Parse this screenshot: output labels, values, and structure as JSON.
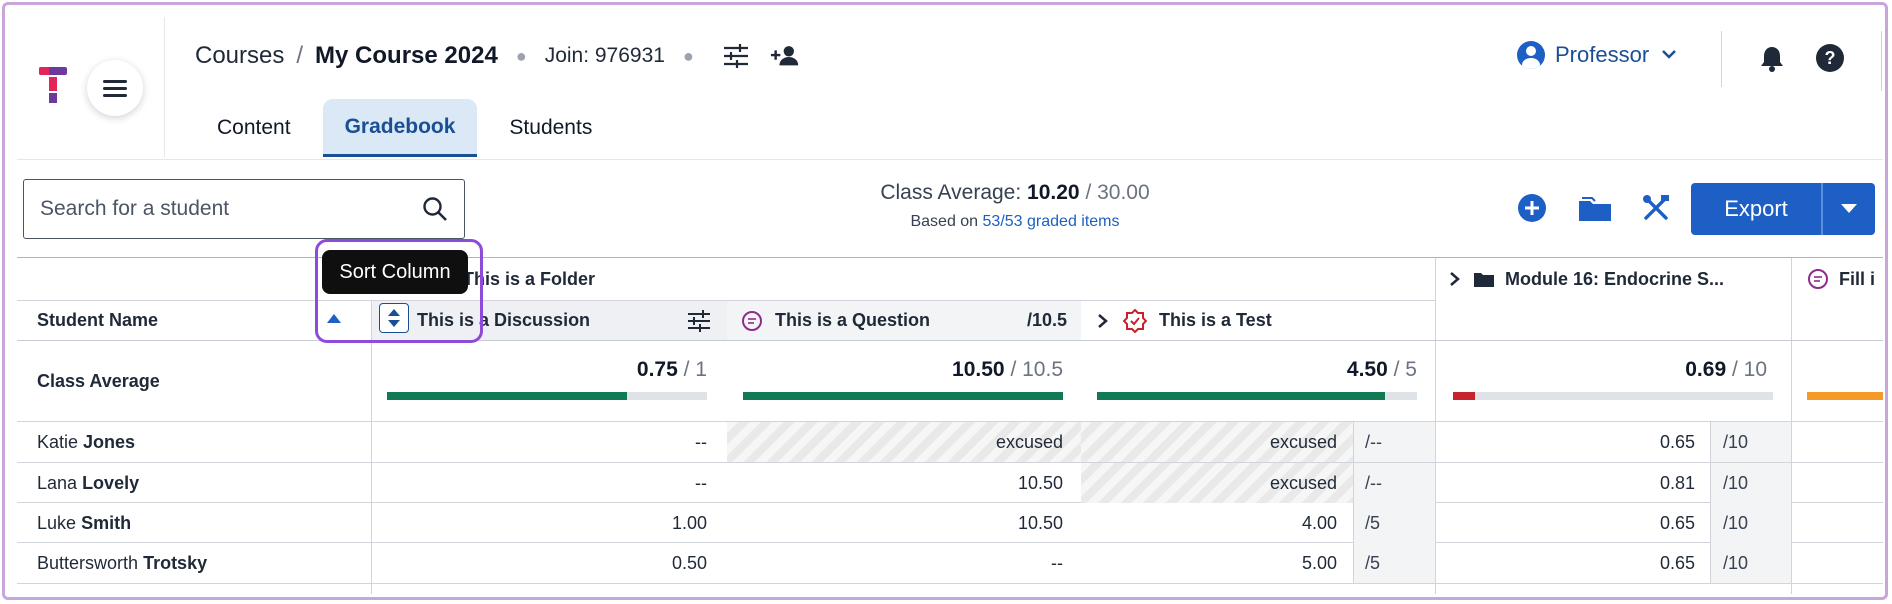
{
  "header": {
    "breadcrumb_root": "Courses",
    "breadcrumb_sep": "/",
    "breadcrumb_current": "My Course 2024",
    "join_code": "Join: 976931",
    "tabs": [
      {
        "label": "Content"
      },
      {
        "label": "Gradebook"
      },
      {
        "label": "Students"
      }
    ],
    "role": "Professor"
  },
  "toolbar": {
    "search_placeholder": "Search for a student",
    "class_average_label": "Class Average:",
    "class_average_value": "10.20",
    "class_average_total": "/ 30.00",
    "based_on_prefix": "Based on",
    "based_on_link": "53/53 graded items",
    "export_label": "Export"
  },
  "tooltip": "Sort Column",
  "grid": {
    "folder_label": "This is a Folder",
    "module_label": "Module 16: Endocrine S...",
    "fill_label": "Fill i",
    "student_name_header": "Student Name",
    "columns": [
      {
        "name": "This is a Discussion",
        "points": ""
      },
      {
        "name": "This is a Question",
        "points": "/10.5"
      },
      {
        "name": "This is a Test",
        "points": ""
      }
    ],
    "class_average_row_label": "Class Average",
    "averages": [
      {
        "value": "0.75",
        "total": "/ 1",
        "fraction": 0.75,
        "color": "#117a55"
      },
      {
        "value": "10.50",
        "total": "/ 10.5",
        "fraction": 1.0,
        "color": "#117a55"
      },
      {
        "value": "4.50",
        "total": "/ 5",
        "fraction": 0.9,
        "color": "#117a55"
      },
      {
        "value": "0.69",
        "total": "/ 10",
        "fraction": 0.069,
        "color": "#c8232c"
      }
    ],
    "fill_avg_color": "#f39a2a",
    "students": [
      {
        "first": "Katie",
        "last": "Jones",
        "c1": "--",
        "c2": "excused",
        "c3": "excused",
        "c3den": "/--",
        "c4": "0.65",
        "c4den": "/10"
      },
      {
        "first": "Lana",
        "last": "Lovely",
        "c1": "--",
        "c2": "10.50",
        "c3": "excused",
        "c3den": "/--",
        "c4": "0.81",
        "c4den": "/10"
      },
      {
        "first": "Luke",
        "last": "Smith",
        "c1": "1.00",
        "c2": "10.50",
        "c3": "4.00",
        "c3den": "/5",
        "c4": "0.65",
        "c4den": "/10"
      },
      {
        "first": "Buttersworth",
        "last": "Trotsky",
        "c1": "0.50",
        "c2": "--",
        "c3": "5.00",
        "c3den": "/5",
        "c4": "0.65",
        "c4den": "/10"
      }
    ]
  },
  "colors": {
    "primary": "#1d5fc4",
    "active_tab_bg": "#dbe8f6",
    "highlight": "#8e4bd9"
  }
}
